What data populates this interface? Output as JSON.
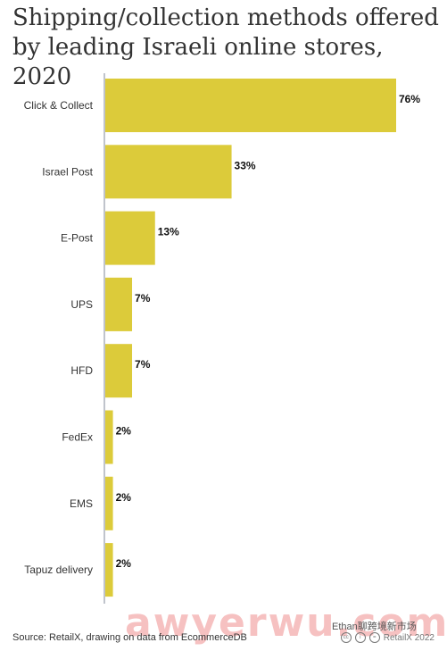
{
  "chart_data": {
    "type": "bar",
    "orientation": "horizontal",
    "title": "Shipping/collection methods offered by leading Israeli online stores, 2020",
    "categories": [
      "Click & Collect",
      "Israel Post",
      "E-Post",
      "UPS",
      "HFD",
      "FedEx",
      "EMS",
      "Tapuz delivery"
    ],
    "values": [
      76,
      33,
      13,
      7,
      7,
      2,
      2,
      2
    ],
    "value_labels": [
      "76%",
      "33%",
      "13%",
      "7%",
      "7%",
      "2%",
      "2%",
      "2%"
    ],
    "xlim": [
      0,
      76
    ],
    "bar_color": "#dccb3a",
    "axis_color": "#c0c4cc",
    "grid": false
  },
  "footer": {
    "source": "Source: RetailX, drawing on data from EcommerceDB",
    "credit": "RetailX 2022",
    "watermark_handle": "Ethan聊跨境新市场",
    "watermark": "awyerwu.com"
  }
}
